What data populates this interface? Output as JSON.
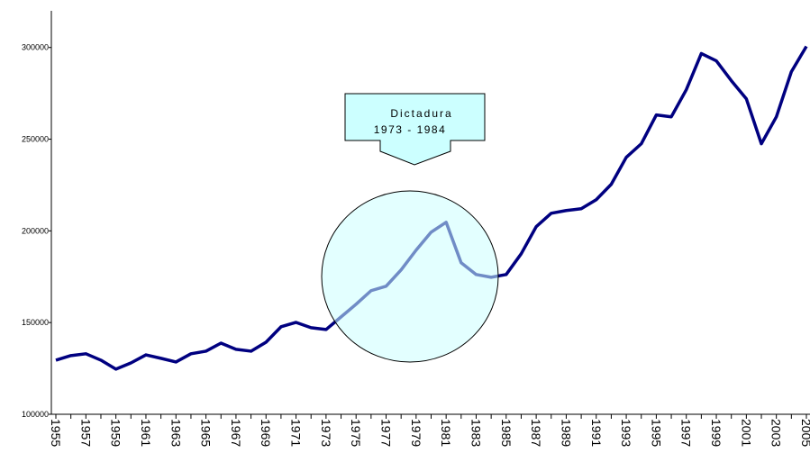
{
  "chart_data": {
    "type": "line",
    "x": [
      1955,
      1956,
      1957,
      1958,
      1959,
      1960,
      1961,
      1962,
      1963,
      1964,
      1965,
      1966,
      1967,
      1968,
      1969,
      1970,
      1971,
      1972,
      1973,
      1974,
      1975,
      1976,
      1977,
      1978,
      1979,
      1980,
      1981,
      1982,
      1983,
      1984,
      1985,
      1986,
      1987,
      1988,
      1989,
      1990,
      1991,
      1992,
      1993,
      1994,
      1995,
      1996,
      1997,
      1998,
      1999,
      2000,
      2001,
      2002,
      2003,
      2004,
      2005
    ],
    "series": [
      {
        "color": "#000080",
        "values": [
          129500,
          132000,
          133000,
          129500,
          124600,
          128000,
          132400,
          130500,
          128500,
          133000,
          134400,
          138800,
          135400,
          134400,
          139300,
          147700,
          150100,
          147200,
          146200,
          153100,
          160000,
          167400,
          169800,
          178700,
          189500,
          199300,
          204700,
          182600,
          176200,
          174700,
          176200,
          187500,
          202300,
          209600,
          211100,
          212100,
          217000,
          225400,
          240100,
          247500,
          263200,
          262200,
          277000,
          296700,
          292700,
          281900,
          272000,
          247500,
          262200,
          286800,
          300600
        ]
      }
    ],
    "xlim": [
      1955,
      2005
    ],
    "xticks": [
      1955,
      1957,
      1959,
      1961,
      1963,
      1965,
      1967,
      1969,
      1971,
      1973,
      1975,
      1977,
      1979,
      1981,
      1983,
      1985,
      1987,
      1989,
      1991,
      1993,
      1995,
      1997,
      1999,
      2001,
      2003,
      2005
    ],
    "ylim": [
      100000,
      320000
    ],
    "yticks": [
      100000,
      150000,
      200000,
      250000,
      300000
    ],
    "annotation": {
      "lines": [
        "Dictadura",
        "1973 - 1984"
      ]
    }
  }
}
